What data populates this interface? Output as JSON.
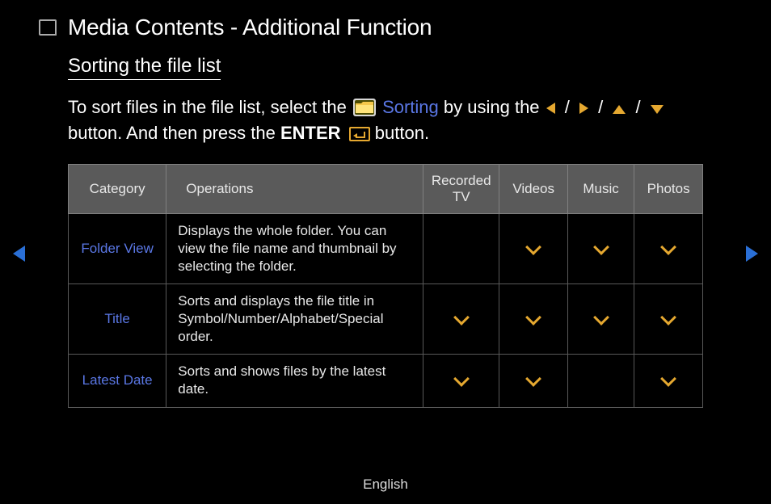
{
  "header": {
    "title": "Media Contents - Additional Function"
  },
  "section": {
    "title": "Sorting the file list",
    "intro_part1": "To sort files in the file list, select the ",
    "sorting_label": "Sorting",
    "intro_part2": " by using the ",
    "intro_part3": "button. And then press the ",
    "enter_label": "ENTER",
    "intro_part4": " button."
  },
  "table": {
    "columns": [
      "Category",
      "Operations",
      "Recorded TV",
      "Videos",
      "Music",
      "Photos"
    ],
    "rows": [
      {
        "category": "Folder View",
        "operation": "Displays the whole folder. You can view the file name and thumbnail by selecting the folder.",
        "checks": [
          false,
          true,
          true,
          true
        ]
      },
      {
        "category": "Title",
        "operation": "Sorts and displays the file title in Symbol/Number/Alphabet/Special order.",
        "checks": [
          true,
          true,
          true,
          true
        ]
      },
      {
        "category": "Latest Date",
        "operation": "Sorts and shows files by the latest date.",
        "checks": [
          true,
          true,
          false,
          true
        ]
      }
    ]
  },
  "footer": {
    "language": "English"
  },
  "colors": {
    "accent_link": "#5a77e5",
    "accent_icon": "#e5a830",
    "table_header_bg": "#5a5a5a",
    "border": "#595959",
    "background": "#000000"
  }
}
